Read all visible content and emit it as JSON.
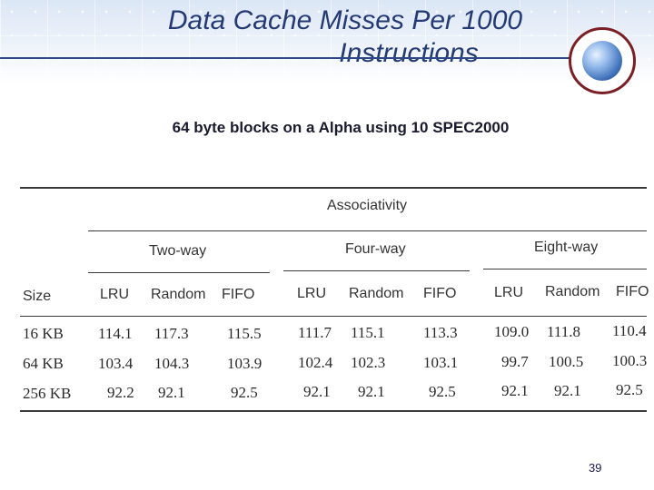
{
  "slide": {
    "title_line1": "Data Cache Misses Per 1000",
    "title_line2": "Instructions",
    "subtitle": "64 byte blocks on a Alpha using 10 SPEC2000",
    "page_number": "39"
  },
  "table": {
    "group_header": "Associativity",
    "size_header": "Size",
    "associativity_groups": [
      "Two-way",
      "Four-way",
      "Eight-way"
    ],
    "policies": [
      "LRU",
      "Random",
      "FIFO",
      "LRU",
      "Random",
      "FIFO",
      "LRU",
      "Random",
      "FIFO"
    ],
    "rows": [
      {
        "size": "16 KB",
        "values": [
          "114.1",
          "117.3",
          "115.5",
          "111.7",
          "115.1",
          "113.3",
          "109.0",
          "111.8",
          "110.4"
        ]
      },
      {
        "size": "64 KB",
        "values": [
          "103.4",
          "104.3",
          "103.9",
          "102.4",
          "102.3",
          "103.1",
          "99.7",
          "100.5",
          "100.3"
        ]
      },
      {
        "size": "256 KB",
        "values": [
          "92.2",
          "92.1",
          "92.5",
          "92.1",
          "92.1",
          "92.5",
          "92.1",
          "92.1",
          "92.5"
        ]
      }
    ]
  }
}
